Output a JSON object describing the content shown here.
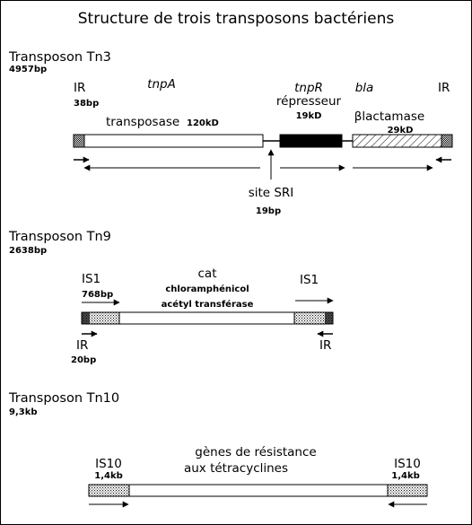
{
  "title": "Structure de trois transposons bactériens",
  "tn3": {
    "name": "Transposon Tn3",
    "size": "4957bp",
    "ir_left": "IR",
    "ir_left_size": "38bp",
    "ir_right": "IR",
    "tnpA": "tnpA",
    "transposase": "transposase",
    "transposase_size": "120kD",
    "tnpR": "tnpR",
    "repressor": "répresseur",
    "repressor_size": "19kD",
    "bla": "bla",
    "lactamase": "βlactamase",
    "lactamase_size": "29kD",
    "site": "site SRI",
    "site_size": "19bp"
  },
  "tn9": {
    "name": "Transposon Tn9",
    "size": "2638bp",
    "is_left": "IS1",
    "is_left_size": "768bp",
    "cat": "cat",
    "cat_desc1": "chloramphénicol",
    "cat_desc2": "acétyl transférase",
    "is_right": "IS1",
    "ir_left": "IR",
    "ir_left_size": "20bp",
    "ir_right": "IR"
  },
  "tn10": {
    "name": "Transposon Tn10",
    "size": "9,3kb",
    "is_left": "IS10",
    "is_left_size": "1,4kb",
    "genes1": "gènes de résistance",
    "genes2": "aux tétracyclines",
    "is_right": "IS10",
    "is_right_size": "1,4kb"
  }
}
